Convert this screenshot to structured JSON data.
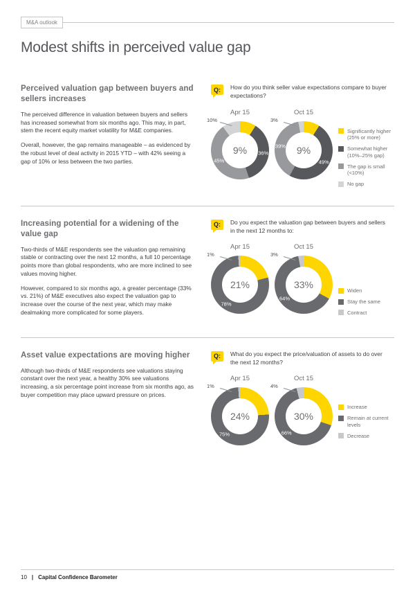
{
  "page": {
    "tag_label": "M&A outlook",
    "title": "Modest shifts in perceived value gap",
    "footer": {
      "page_number": "10",
      "divider": "|",
      "title": "Capital Confidence Barometer"
    }
  },
  "colors": {
    "accent_yellow": "#FFD500",
    "dark_gray_row1": "#57585C",
    "mid_gray_row1": "#98999C",
    "light_gray_row1": "#D3D4D6",
    "dark_gray_rows23": "#696A6E",
    "light_gray_rows23": "#C7C8CB"
  },
  "sections": [
    {
      "q_label": "Q:",
      "heading": "Perceived valuation gap between buyers and sellers increases",
      "paragraphs": [
        "The perceived difference in valuation between buyers and sellers has increased somewhat from six months ago. This may, in part, stem the recent equity market volatility for M&E companies.",
        "Overall, however, the gap remains manageable – as evidenced by the robust level of deal activity in 2015 YTD – with 42% seeing a gap of 10% or less between the two parties."
      ],
      "question": "How do you think seller value expectations compare to buyer expectations?"
    },
    {
      "q_label": "Q:",
      "heading": "Increasing potential for a widening of the value gap",
      "paragraphs": [
        "Two-thirds of M&E respondents see the valuation gap remaining stable or contracting over the next 12 months, a full 10 percentage points more than global respondents, who are more inclined to see values moving higher.",
        "However, compared to six months ago, a greater percentage (33% vs. 21%) of M&E executives also expect the valuation gap to increase over the course of the next year, which may make dealmaking more complicated for some players."
      ],
      "question": "Do you expect the valuation gap between buyers and sellers in the next 12 months to:"
    },
    {
      "q_label": "Q:",
      "heading": "Asset value expectations are moving higher",
      "paragraphs": [
        "Although two-thirds of M&E respondents see valuations staying constant over the next year, a healthy 30% see valuations increasing, a six percentage point increase from six months ago, as buyer competition may place upward pressure on prices."
      ],
      "question": "What do you expect the price/valuation of assets to do over the next 12 months?"
    }
  ],
  "chart_data": [
    {
      "type": "pie",
      "style": "donut-pair",
      "question": "How do you think seller value expectations compare to buyer expectations?",
      "legend": [
        {
          "label": "Significantly higher (25% or more)",
          "color": "#FFD500"
        },
        {
          "label": "Somewhat higher (10%–25% gap)",
          "color": "#57585C"
        },
        {
          "label": "The gap is small (<10%)",
          "color": "#98999C"
        },
        {
          "label": "No gap",
          "color": "#D3D4D6"
        }
      ],
      "charts": [
        {
          "title": "Apr 15",
          "center_label": "9%",
          "callout": "10%",
          "segments": [
            {
              "name": "Significantly higher (25% or more)",
              "pct": 9,
              "color": "#FFD500",
              "label": ""
            },
            {
              "name": "Somewhat higher (10%–25% gap)",
              "pct": 36,
              "color": "#57585C",
              "label": "36%"
            },
            {
              "name": "The gap is small (<10%)",
              "pct": 45,
              "color": "#98999C",
              "label": "45%"
            },
            {
              "name": "No gap",
              "pct": 10,
              "color": "#D3D4D6",
              "label": ""
            }
          ]
        },
        {
          "title": "Oct 15",
          "center_label": "9%",
          "callout": "3%",
          "segments": [
            {
              "name": "Significantly higher (25% or more)",
              "pct": 9,
              "color": "#FFD500",
              "label": ""
            },
            {
              "name": "Somewhat higher (10%–25% gap)",
              "pct": 49,
              "color": "#57585C",
              "label": "49%"
            },
            {
              "name": "The gap is small (<10%)",
              "pct": 39,
              "color": "#98999C",
              "label": "39%"
            },
            {
              "name": "No gap",
              "pct": 3,
              "color": "#D3D4D6",
              "label": ""
            }
          ]
        }
      ]
    },
    {
      "type": "pie",
      "style": "donut-pair",
      "question": "Do you expect the valuation gap between buyers and sellers in the next 12 months to:",
      "legend": [
        {
          "label": "Widen",
          "color": "#FFD500"
        },
        {
          "label": "Stay the same",
          "color": "#696A6E"
        },
        {
          "label": "Contract",
          "color": "#C7C8CB"
        }
      ],
      "charts": [
        {
          "title": "Apr 15",
          "center_label": "21%",
          "callout": "1%",
          "segments": [
            {
              "name": "Widen",
              "pct": 21,
              "color": "#FFD500",
              "label": ""
            },
            {
              "name": "Stay the same",
              "pct": 78,
              "color": "#696A6E",
              "label": "78%"
            },
            {
              "name": "Contract",
              "pct": 1,
              "color": "#C7C8CB",
              "label": ""
            }
          ]
        },
        {
          "title": "Oct 15",
          "center_label": "33%",
          "callout": "3%",
          "segments": [
            {
              "name": "Widen",
              "pct": 33,
              "color": "#FFD500",
              "label": ""
            },
            {
              "name": "Stay the same",
              "pct": 64,
              "color": "#696A6E",
              "label": "64%"
            },
            {
              "name": "Contract",
              "pct": 3,
              "color": "#C7C8CB",
              "label": ""
            }
          ]
        }
      ]
    },
    {
      "type": "pie",
      "style": "donut-pair",
      "question": "What do you expect the price/valuation of assets to do over the next 12 months?",
      "legend": [
        {
          "label": "Increase",
          "color": "#FFD500"
        },
        {
          "label": "Remain at current levels",
          "color": "#696A6E"
        },
        {
          "label": "Decrease",
          "color": "#C7C8CB"
        }
      ],
      "charts": [
        {
          "title": "Apr 15",
          "center_label": "24%",
          "callout": "1%",
          "segments": [
            {
              "name": "Increase",
              "pct": 24,
              "color": "#FFD500",
              "label": ""
            },
            {
              "name": "Remain at current levels",
              "pct": 75,
              "color": "#696A6E",
              "label": "75%"
            },
            {
              "name": "Decrease",
              "pct": 1,
              "color": "#C7C8CB",
              "label": ""
            }
          ]
        },
        {
          "title": "Oct 15",
          "center_label": "30%",
          "callout": "4%",
          "segments": [
            {
              "name": "Increase",
              "pct": 30,
              "color": "#FFD500",
              "label": ""
            },
            {
              "name": "Remain at current levels",
              "pct": 66,
              "color": "#696A6E",
              "label": "66%"
            },
            {
              "name": "Decrease",
              "pct": 4,
              "color": "#C7C8CB",
              "label": ""
            }
          ]
        }
      ]
    }
  ]
}
